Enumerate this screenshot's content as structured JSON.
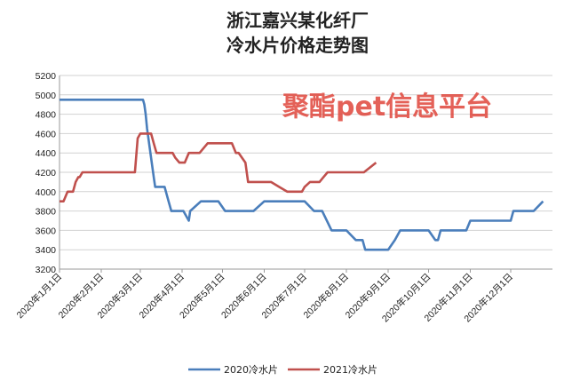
{
  "chart_data": {
    "type": "line",
    "title_lines": [
      "浙江嘉兴某化纤厂",
      "冷水片价格走势图"
    ],
    "x_ticks": [
      "2020年1月1日",
      "2020年2月1日",
      "2020年3月1日",
      "2020年4月1日",
      "2020年5月1日",
      "2020年6月1日",
      "2020年7月1日",
      "2020年8月1日",
      "2020年9月1日",
      "2020年10月1日",
      "2020年11月1日",
      "2020年12月1日"
    ],
    "ylim": [
      3200,
      5200
    ],
    "y_ticks": [
      3200,
      3400,
      3600,
      3800,
      4000,
      4200,
      4400,
      4600,
      4800,
      5000,
      5200
    ],
    "grid": true,
    "legend_position": "bottom",
    "series": [
      {
        "name": "2020冷水片",
        "color": "#4a7ebb",
        "x": [
          "01-01",
          "02-10",
          "03-03",
          "03-04",
          "03-05",
          "03-06",
          "03-07",
          "03-08",
          "03-09",
          "03-10",
          "03-11",
          "03-12",
          "03-19",
          "03-20",
          "03-22",
          "03-24",
          "03-25",
          "03-26",
          "03-27",
          "03-28",
          "04-02",
          "04-06",
          "04-07",
          "04-15",
          "04-21",
          "04-28",
          "05-03",
          "05-13",
          "05-15",
          "05-17",
          "05-24",
          "06-01",
          "06-19",
          "06-23",
          "06-28",
          "07-01",
          "07-08",
          "07-14",
          "07-21",
          "07-24",
          "07-30",
          "08-01",
          "08-08",
          "08-13",
          "08-15",
          "08-20",
          "08-24",
          "08-28",
          "09-01",
          "09-06",
          "09-10",
          "09-12",
          "09-14",
          "09-17",
          "09-21",
          "10-01",
          "10-06",
          "10-08",
          "10-10",
          "10-12",
          "10-20",
          "10-29",
          "11-01",
          "11-06",
          "11-09",
          "11-15",
          "12-01",
          "12-03",
          "12-18",
          "12-25"
        ],
        "y": [
          4950,
          4950,
          4950,
          4900,
          4800,
          4650,
          4550,
          4450,
          4350,
          4250,
          4150,
          4050,
          4050,
          4000,
          3900,
          3800,
          3800,
          3800,
          3800,
          3800,
          3800,
          3700,
          3800,
          3900,
          3900,
          3900,
          3800,
          3800,
          3800,
          3800,
          3800,
          3900,
          3900,
          3900,
          3900,
          3900,
          3800,
          3800,
          3600,
          3600,
          3600,
          3600,
          3500,
          3500,
          3400,
          3400,
          3400,
          3400,
          3400,
          3500,
          3600,
          3600,
          3600,
          3600,
          3600,
          3600,
          3500,
          3500,
          3600,
          3600,
          3600,
          3600,
          3700,
          3700,
          3700,
          3700,
          3700,
          3800,
          3800,
          3900
        ]
      },
      {
        "name": "2021冷水片",
        "color": "#c0504d",
        "x": [
          "01-01",
          "01-04",
          "01-07",
          "01-11",
          "01-13",
          "01-15",
          "01-16",
          "01-18",
          "01-20",
          "02-09",
          "02-26",
          "02-28",
          "03-01",
          "03-02",
          "03-03",
          "03-06",
          "03-09",
          "03-11",
          "03-13",
          "03-15",
          "03-20",
          "03-25",
          "03-27",
          "03-30",
          "04-03",
          "04-06",
          "04-10",
          "04-14",
          "04-20",
          "04-28",
          "05-08",
          "05-11",
          "05-13",
          "05-18",
          "05-20",
          "05-25",
          "05-31",
          "06-02",
          "06-06",
          "06-12",
          "06-18",
          "06-23",
          "06-29",
          "07-01",
          "07-05",
          "07-12",
          "07-15",
          "07-18",
          "07-22",
          "07-26",
          "08-05",
          "08-14",
          "08-23"
        ],
        "y": [
          3900,
          3900,
          4000,
          4000,
          4100,
          4150,
          4150,
          4200,
          4200,
          4200,
          4200,
          4550,
          4600,
          4600,
          4600,
          4600,
          4600,
          4500,
          4400,
          4400,
          4400,
          4400,
          4350,
          4300,
          4300,
          4400,
          4400,
          4400,
          4500,
          4500,
          4500,
          4400,
          4400,
          4300,
          4100,
          4100,
          4100,
          4100,
          4100,
          4050,
          4000,
          4000,
          4000,
          4050,
          4100,
          4100,
          4150,
          4200,
          4200,
          4200,
          4200,
          4200,
          4300
        ]
      }
    ]
  },
  "watermark": "聚酯pet信息平台",
  "legend": [
    {
      "label": "2020冷水片",
      "color": "#4a7ebb"
    },
    {
      "label": "2021冷水片",
      "color": "#c0504d"
    }
  ]
}
